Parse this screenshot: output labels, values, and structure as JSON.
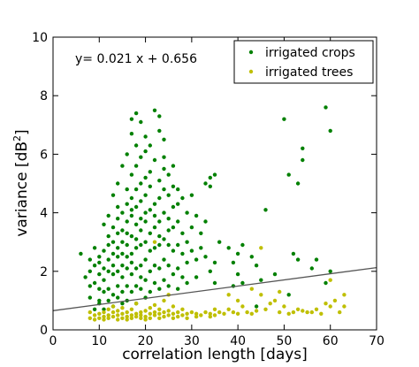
{
  "chart_data": {
    "type": "scatter",
    "title": "",
    "xlabel": "correlation length [days]",
    "ylabel_main": "variance [dB",
    "ylabel_sup": "2",
    "ylabel_close": "]",
    "xlim": [
      0,
      70
    ],
    "ylim": [
      0,
      10
    ],
    "xticks": [
      0,
      10,
      20,
      30,
      40,
      50,
      60,
      70
    ],
    "yticks": [
      0,
      2,
      4,
      6,
      8,
      10
    ],
    "grid": false,
    "legend_position": "top-right",
    "annotation": "y= 0.021 x + 0.656",
    "fit_line": {
      "slope": 0.021,
      "intercept": 0.656,
      "color": "#555555"
    },
    "series": [
      {
        "name": "irrigated crops",
        "color": "#008000",
        "points": [
          [
            6,
            2.6
          ],
          [
            7,
            1.8
          ],
          [
            8,
            2.0
          ],
          [
            8,
            2.4
          ],
          [
            8,
            1.1
          ],
          [
            8,
            1.5
          ],
          [
            9,
            2.2
          ],
          [
            9,
            1.6
          ],
          [
            9,
            0.7
          ],
          [
            9,
            2.8
          ],
          [
            10,
            2.3
          ],
          [
            10,
            1.0
          ],
          [
            10,
            1.9
          ],
          [
            10,
            1.4
          ],
          [
            10,
            2.5
          ],
          [
            10,
            0.9
          ],
          [
            11,
            2.1
          ],
          [
            11,
            1.3
          ],
          [
            11,
            3.6
          ],
          [
            11,
            1.7
          ],
          [
            11,
            0.7
          ],
          [
            11,
            2.7
          ],
          [
            12,
            2.9
          ],
          [
            12,
            3.2
          ],
          [
            12,
            2.0
          ],
          [
            12,
            1.4
          ],
          [
            12,
            1.0
          ],
          [
            12,
            2.4
          ],
          [
            12,
            3.9
          ],
          [
            13,
            3.5
          ],
          [
            13,
            2.6
          ],
          [
            13,
            1.9
          ],
          [
            13,
            1.2
          ],
          [
            13,
            0.8
          ],
          [
            13,
            3.0
          ],
          [
            13,
            4.6
          ],
          [
            13,
            2.2
          ],
          [
            14,
            3.8
          ],
          [
            14,
            2.8
          ],
          [
            14,
            2.0
          ],
          [
            14,
            1.5
          ],
          [
            14,
            1.1
          ],
          [
            14,
            3.3
          ],
          [
            14,
            4.2
          ],
          [
            14,
            2.5
          ],
          [
            14,
            5.0
          ],
          [
            15,
            3.4
          ],
          [
            15,
            2.6
          ],
          [
            15,
            1.8
          ],
          [
            15,
            1.3
          ],
          [
            15,
            4.0
          ],
          [
            15,
            3.0
          ],
          [
            15,
            2.2
          ],
          [
            15,
            5.6
          ],
          [
            15,
            0.9
          ],
          [
            16,
            4.8
          ],
          [
            16,
            3.7
          ],
          [
            16,
            2.9
          ],
          [
            16,
            2.1
          ],
          [
            16,
            1.5
          ],
          [
            16,
            3.3
          ],
          [
            16,
            4.3
          ],
          [
            16,
            6.0
          ],
          [
            16,
            1.0
          ],
          [
            16,
            2.5
          ],
          [
            17,
            6.7
          ],
          [
            17,
            5.3
          ],
          [
            17,
            4.5
          ],
          [
            17,
            3.9
          ],
          [
            17,
            3.2
          ],
          [
            17,
            2.6
          ],
          [
            17,
            1.9
          ],
          [
            17,
            1.3
          ],
          [
            17,
            7.2
          ],
          [
            17,
            4.1
          ],
          [
            17,
            2.3
          ],
          [
            18,
            7.4
          ],
          [
            18,
            6.3
          ],
          [
            18,
            5.6
          ],
          [
            18,
            4.8
          ],
          [
            18,
            3.6
          ],
          [
            18,
            2.8
          ],
          [
            18,
            2.1
          ],
          [
            18,
            1.5
          ],
          [
            18,
            4.2
          ],
          [
            18,
            3.1
          ],
          [
            18,
            0.9
          ],
          [
            19,
            7.1
          ],
          [
            19,
            5.9
          ],
          [
            19,
            5.0
          ],
          [
            19,
            4.4
          ],
          [
            19,
            3.8
          ],
          [
            19,
            2.9
          ],
          [
            19,
            2.2
          ],
          [
            19,
            1.4
          ],
          [
            19,
            3.4
          ],
          [
            19,
            1.8
          ],
          [
            20,
            6.6
          ],
          [
            20,
            6.1
          ],
          [
            20,
            5.2
          ],
          [
            20,
            4.6
          ],
          [
            20,
            3.7
          ],
          [
            20,
            3.0
          ],
          [
            20,
            2.4
          ],
          [
            20,
            1.7
          ],
          [
            20,
            1.1
          ],
          [
            20,
            4.0
          ],
          [
            21,
            5.4
          ],
          [
            21,
            4.9
          ],
          [
            21,
            4.1
          ],
          [
            21,
            3.3
          ],
          [
            21,
            2.7
          ],
          [
            21,
            2.0
          ],
          [
            21,
            1.3
          ],
          [
            21,
            6.3
          ],
          [
            22,
            7.5
          ],
          [
            22,
            5.8
          ],
          [
            22,
            4.3
          ],
          [
            22,
            3.5
          ],
          [
            22,
            2.8
          ],
          [
            22,
            2.2
          ],
          [
            22,
            1.6
          ],
          [
            22,
            3.9
          ],
          [
            23,
            7.3
          ],
          [
            23,
            6.8
          ],
          [
            23,
            5.1
          ],
          [
            23,
            4.5
          ],
          [
            23,
            3.7
          ],
          [
            23,
            2.9
          ],
          [
            23,
            2.1
          ],
          [
            23,
            1.4
          ],
          [
            23,
            3.2
          ],
          [
            24,
            6.5
          ],
          [
            24,
            5.5
          ],
          [
            24,
            4.8
          ],
          [
            24,
            4.0
          ],
          [
            24,
            3.1
          ],
          [
            24,
            2.4
          ],
          [
            24,
            1.7
          ],
          [
            24,
            5.9
          ],
          [
            25,
            5.3
          ],
          [
            25,
            4.6
          ],
          [
            25,
            3.8
          ],
          [
            25,
            2.9
          ],
          [
            25,
            2.2
          ],
          [
            25,
            1.5
          ],
          [
            25,
            3.4
          ],
          [
            26,
            4.9
          ],
          [
            26,
            4.2
          ],
          [
            26,
            3.5
          ],
          [
            26,
            2.7
          ],
          [
            26,
            1.9
          ],
          [
            26,
            5.6
          ],
          [
            27,
            4.3
          ],
          [
            27,
            3.7
          ],
          [
            27,
            2.9
          ],
          [
            27,
            2.1
          ],
          [
            27,
            1.4
          ],
          [
            27,
            4.8
          ],
          [
            28,
            4.5
          ],
          [
            28,
            3.3
          ],
          [
            28,
            2.6
          ],
          [
            28,
            1.8
          ],
          [
            29,
            4.0
          ],
          [
            29,
            3.0
          ],
          [
            29,
            2.3
          ],
          [
            29,
            1.6
          ],
          [
            30,
            3.5
          ],
          [
            30,
            2.7
          ],
          [
            30,
            4.6
          ],
          [
            31,
            3.9
          ],
          [
            31,
            2.4
          ],
          [
            31,
            1.8
          ],
          [
            32,
            3.3
          ],
          [
            32,
            2.8
          ],
          [
            33,
            5.0
          ],
          [
            33,
            2.5
          ],
          [
            33,
            3.7
          ],
          [
            34,
            5.2
          ],
          [
            34,
            4.9
          ],
          [
            34,
            2.0
          ],
          [
            35,
            5.3
          ],
          [
            35,
            2.3
          ],
          [
            35,
            1.6
          ],
          [
            36,
            3.0
          ],
          [
            38,
            2.8
          ],
          [
            39,
            2.3
          ],
          [
            39,
            1.5
          ],
          [
            40,
            2.6
          ],
          [
            40,
            1.9
          ],
          [
            41,
            1.6
          ],
          [
            41,
            2.9
          ],
          [
            43,
            2.5
          ],
          [
            44,
            2.2
          ],
          [
            44,
            0.8
          ],
          [
            45,
            1.7
          ],
          [
            46,
            4.1
          ],
          [
            48,
            1.9
          ],
          [
            50,
            7.2
          ],
          [
            51,
            5.3
          ],
          [
            51,
            1.2
          ],
          [
            52,
            2.6
          ],
          [
            53,
            5.0
          ],
          [
            53,
            2.4
          ],
          [
            54,
            6.2
          ],
          [
            54,
            5.8
          ],
          [
            56,
            2.1
          ],
          [
            57,
            2.4
          ],
          [
            59,
            7.6
          ],
          [
            59,
            1.6
          ],
          [
            60,
            6.8
          ],
          [
            60,
            2.0
          ]
        ]
      },
      {
        "name": "irrigated trees",
        "color": "#BFBF00",
        "points": [
          [
            8,
            0.6
          ],
          [
            8,
            0.4
          ],
          [
            9,
            0.5
          ],
          [
            9,
            0.35
          ],
          [
            10,
            0.55
          ],
          [
            10,
            0.4
          ],
          [
            11,
            0.6
          ],
          [
            11,
            0.45
          ],
          [
            11,
            0.35
          ],
          [
            12,
            0.5
          ],
          [
            12,
            0.7
          ],
          [
            12,
            0.4
          ],
          [
            13,
            0.6
          ],
          [
            13,
            0.45
          ],
          [
            13,
            0.8
          ],
          [
            14,
            0.5
          ],
          [
            14,
            0.35
          ],
          [
            14,
            0.65
          ],
          [
            15,
            0.55
          ],
          [
            15,
            0.4
          ],
          [
            15,
            0.75
          ],
          [
            16,
            0.6
          ],
          [
            16,
            0.45
          ],
          [
            16,
            0.35
          ],
          [
            17,
            0.5
          ],
          [
            17,
            0.7
          ],
          [
            17,
            0.4
          ],
          [
            18,
            0.55
          ],
          [
            18,
            0.45
          ],
          [
            18,
            0.9
          ],
          [
            19,
            0.6
          ],
          [
            19,
            0.4
          ],
          [
            19,
            0.5
          ],
          [
            20,
            0.65
          ],
          [
            20,
            0.45
          ],
          [
            20,
            0.35
          ],
          [
            21,
            0.55
          ],
          [
            21,
            0.75
          ],
          [
            21,
            0.4
          ],
          [
            22,
            0.6
          ],
          [
            22,
            0.5
          ],
          [
            22,
            0.85
          ],
          [
            22,
            3.0
          ],
          [
            23,
            0.55
          ],
          [
            23,
            0.4
          ],
          [
            23,
            0.7
          ],
          [
            24,
            0.6
          ],
          [
            24,
            0.45
          ],
          [
            24,
            1.0
          ],
          [
            25,
            0.5
          ],
          [
            25,
            0.65
          ],
          [
            25,
            1.2
          ],
          [
            26,
            0.55
          ],
          [
            26,
            0.4
          ],
          [
            26,
            0.8
          ],
          [
            27,
            0.6
          ],
          [
            27,
            0.45
          ],
          [
            28,
            0.5
          ],
          [
            28,
            0.7
          ],
          [
            29,
            0.55
          ],
          [
            29,
            0.4
          ],
          [
            30,
            0.6
          ],
          [
            31,
            0.45
          ],
          [
            31,
            0.55
          ],
          [
            32,
            0.5
          ],
          [
            33,
            0.6
          ],
          [
            34,
            0.45
          ],
          [
            34,
            0.55
          ],
          [
            35,
            0.5
          ],
          [
            35,
            0.7
          ],
          [
            36,
            0.6
          ],
          [
            37,
            0.55
          ],
          [
            38,
            1.2
          ],
          [
            38,
            0.7
          ],
          [
            39,
            0.6
          ],
          [
            40,
            1.0
          ],
          [
            40,
            0.55
          ],
          [
            41,
            0.8
          ],
          [
            42,
            0.6
          ],
          [
            43,
            0.55
          ],
          [
            43,
            1.4
          ],
          [
            44,
            0.65
          ],
          [
            45,
            1.2
          ],
          [
            45,
            2.8
          ],
          [
            46,
            0.7
          ],
          [
            47,
            0.9
          ],
          [
            48,
            1.0
          ],
          [
            49,
            1.3
          ],
          [
            49,
            0.6
          ],
          [
            50,
            0.8
          ],
          [
            51,
            0.55
          ],
          [
            52,
            0.6
          ],
          [
            53,
            0.7
          ],
          [
            54,
            0.65
          ],
          [
            55,
            0.6
          ],
          [
            56,
            0.6
          ],
          [
            57,
            0.7
          ],
          [
            58,
            0.55
          ],
          [
            59,
            0.9
          ],
          [
            60,
            0.8
          ],
          [
            60,
            1.7
          ],
          [
            61,
            1.0
          ],
          [
            62,
            0.6
          ],
          [
            63,
            1.2
          ],
          [
            63,
            0.8
          ]
        ]
      }
    ]
  }
}
